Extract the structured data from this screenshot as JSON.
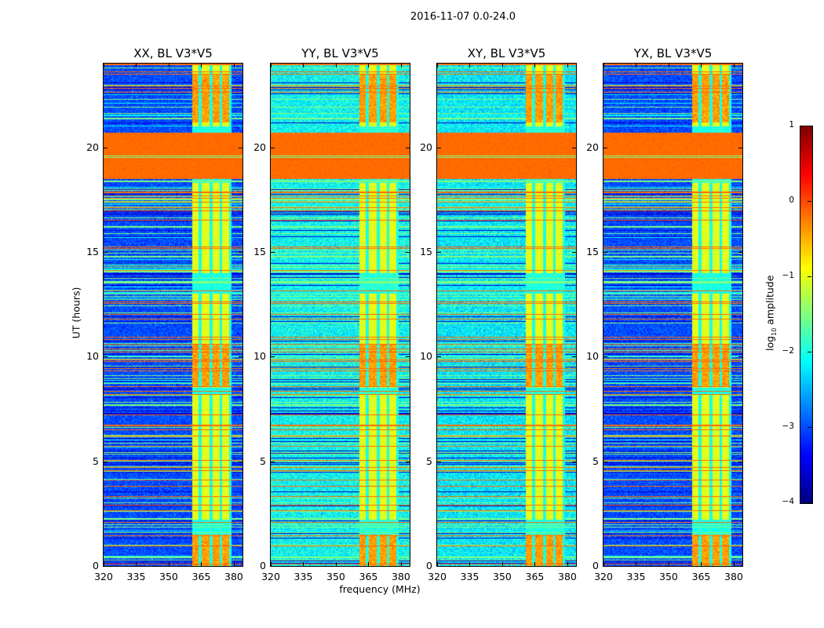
{
  "chart_data": {
    "type": "heatmap",
    "title": "2016-11-07 0.0-24.0",
    "xlabel": "frequency (MHz)",
    "ylabel": "UT (hours)",
    "xlim": [
      320,
      384
    ],
    "ylim": [
      0,
      24
    ],
    "xticks": [
      320,
      335,
      350,
      365,
      380
    ],
    "yticks": [
      0,
      5,
      10,
      15,
      20
    ],
    "panels": [
      {
        "title": "XX, BL V3*V5",
        "baseline_log_amp": -3.0,
        "noise": 0.35
      },
      {
        "title": "YY, BL V3*V5",
        "baseline_log_amp": -2.1,
        "noise": 0.45
      },
      {
        "title": "XY, BL V3*V5",
        "baseline_log_amp": -2.2,
        "noise": 0.45
      },
      {
        "title": "YX, BL V3*V5",
        "baseline_log_amp": -3.0,
        "noise": 0.35
      }
    ],
    "features": {
      "strong_band_hours": [
        18.5,
        20.7
      ],
      "strong_band_log_amp": -0.15,
      "rfi_band_mhz": [
        361,
        379
      ],
      "rfi_gap_mhz": [
        364.5,
        369.5,
        374,
        378.5
      ],
      "rfi_active_hours": [
        [
          0,
          1.5
        ],
        [
          2.2,
          8.2
        ],
        [
          8.5,
          13
        ],
        [
          14,
          18.3
        ],
        [
          21,
          24
        ]
      ],
      "rfi_strong_hours": [
        [
          0,
          1.5
        ],
        [
          8.6,
          10.6
        ],
        [
          21.2,
          23.5
        ]
      ]
    },
    "colorbar": {
      "label_prefix": "log",
      "label_sub": "10",
      "label_suffix": " amplitude",
      "range": [
        -4,
        1
      ],
      "ticks": [
        "1",
        "0",
        "−1",
        "−2",
        "−3",
        "−4"
      ],
      "colormap": "jet"
    }
  }
}
